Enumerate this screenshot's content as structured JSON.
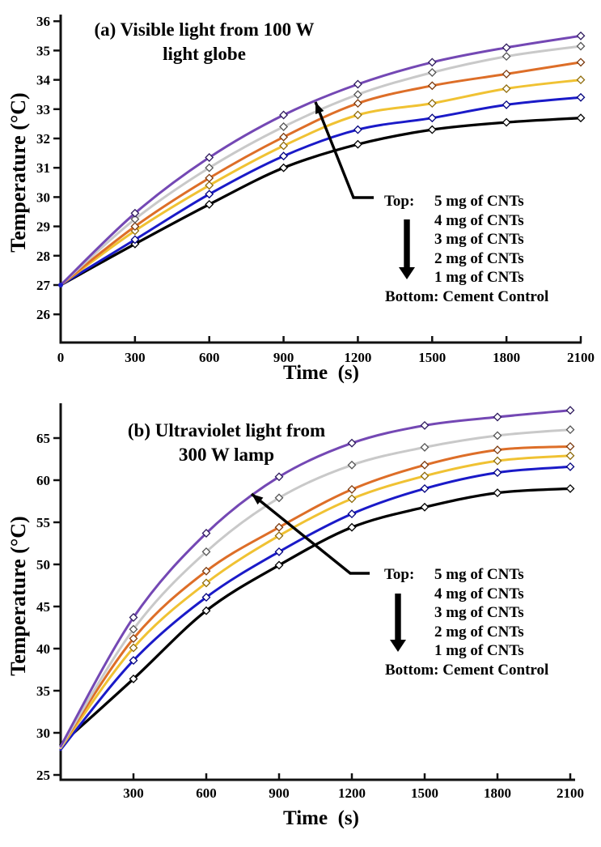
{
  "chart_data": [
    {
      "type": "line",
      "panel": "a",
      "title_lines": [
        "(a) Visible light from 100 W",
        "light globe"
      ],
      "title": "(a) Visible light from 100 W light globe",
      "xlabel": "Time  (s)",
      "ylabel": "Temperature (°C)",
      "x": [
        0,
        300,
        600,
        900,
        1200,
        1500,
        1800,
        2100
      ],
      "x_ticks": [
        0,
        300,
        600,
        900,
        1200,
        1500,
        1800,
        2100
      ],
      "y_ticks": [
        26,
        27,
        28,
        29,
        30,
        31,
        32,
        33,
        34,
        35,
        36
      ],
      "xlim": [
        0,
        2100
      ],
      "ylim": [
        25,
        36.2
      ],
      "grid": false,
      "series": [
        {
          "name": "5 mg of CNTs",
          "color": "#7448b4",
          "marker_stroke": "#2f1b5e",
          "values": [
            27.0,
            29.45,
            31.35,
            32.8,
            33.85,
            34.6,
            35.1,
            35.5
          ]
        },
        {
          "name": "4 mg of CNTs",
          "color": "#c9c9c9",
          "marker_stroke": "#555555",
          "values": [
            27.0,
            29.25,
            31.0,
            32.4,
            33.5,
            34.25,
            34.8,
            35.15
          ]
        },
        {
          "name": "3 mg of CNTs",
          "color": "#dd6e28",
          "marker_stroke": "#7c3a0e",
          "values": [
            27.0,
            29.0,
            30.65,
            32.05,
            33.2,
            33.8,
            34.2,
            34.6
          ]
        },
        {
          "name": "2 mg of CNTs",
          "color": "#f0c233",
          "marker_stroke": "#8f6c0c",
          "values": [
            27.0,
            28.85,
            30.4,
            31.75,
            32.8,
            33.2,
            33.7,
            34.0
          ]
        },
        {
          "name": "1 mg of CNTs",
          "color": "#1a1ac8",
          "marker_stroke": "#00007e",
          "values": [
            27.0,
            28.55,
            30.1,
            31.4,
            32.3,
            32.7,
            33.15,
            33.4
          ]
        },
        {
          "name": "Cement Control",
          "color": "#000000",
          "marker_stroke": "#000000",
          "values": [
            27.0,
            28.4,
            29.75,
            31.0,
            31.8,
            32.3,
            32.55,
            32.7
          ]
        }
      ],
      "legend": {
        "position": "lower right",
        "top_label": "Top:",
        "items": [
          "5 mg of CNTs",
          "4 mg of CNTs",
          "3 mg of CNTs",
          "2 mg of CNTs",
          "1 mg of CNTs"
        ],
        "bottom_label": "Bottom: Cement Control"
      }
    },
    {
      "type": "line",
      "panel": "b",
      "title_lines": [
        "(b) Ultraviolet light from",
        "300 W lamp"
      ],
      "title": "(b) Ultraviolet light from 300 W lamp",
      "xlabel": "Time  (s)",
      "ylabel": "Temperature (°C)",
      "x": [
        0,
        300,
        600,
        900,
        1200,
        1500,
        1800,
        2100
      ],
      "x_ticks": [
        300,
        600,
        900,
        1200,
        1500,
        1800,
        2100
      ],
      "y_ticks": [
        25,
        30,
        35,
        40,
        45,
        50,
        55,
        60,
        65
      ],
      "xlim": [
        0,
        2100
      ],
      "ylim": [
        24.4,
        69
      ],
      "grid": false,
      "series": [
        {
          "name": "5 mg of CNTs",
          "color": "#7448b4",
          "marker_stroke": "#2f1b5e",
          "values": [
            28.4,
            43.7,
            53.7,
            60.4,
            64.4,
            66.5,
            67.5,
            68.3
          ]
        },
        {
          "name": "4 mg of CNTs",
          "color": "#c9c9c9",
          "marker_stroke": "#555555",
          "values": [
            28.3,
            42.3,
            51.5,
            57.9,
            61.8,
            63.9,
            65.3,
            66.0
          ]
        },
        {
          "name": "3 mg of CNTs",
          "color": "#dd6e28",
          "marker_stroke": "#7c3a0e",
          "values": [
            28.3,
            41.2,
            49.2,
            54.4,
            58.9,
            61.8,
            63.6,
            64.0
          ]
        },
        {
          "name": "2 mg of CNTs",
          "color": "#f0c233",
          "marker_stroke": "#8f6c0c",
          "values": [
            28.2,
            40.1,
            47.8,
            53.4,
            57.8,
            60.5,
            62.3,
            62.9
          ]
        },
        {
          "name": "1 mg of CNTs",
          "color": "#1a1ac8",
          "marker_stroke": "#00007e",
          "values": [
            28.0,
            38.6,
            46.1,
            51.5,
            56.0,
            59.0,
            60.9,
            61.6
          ]
        },
        {
          "name": "Cement Control",
          "color": "#000000",
          "marker_stroke": "#000000",
          "values": [
            28.6,
            36.4,
            44.5,
            49.9,
            54.4,
            56.8,
            58.5,
            59.0
          ]
        }
      ],
      "legend": {
        "position": "lower right",
        "top_label": "Top:",
        "items": [
          "5 mg of CNTs",
          "4 mg of CNTs",
          "3 mg of CNTs",
          "2 mg of CNTs",
          "1 mg of CNTs"
        ],
        "bottom_label": "Bottom: Cement Control"
      }
    }
  ]
}
